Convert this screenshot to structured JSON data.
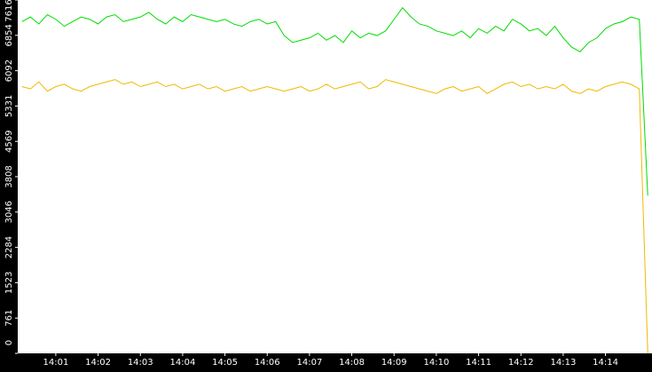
{
  "chart_data": {
    "type": "line",
    "categories": [
      null,
      null,
      null,
      null,
      "14:01",
      null,
      null,
      null,
      null,
      "14:02",
      null,
      null,
      null,
      null,
      "14:03",
      null,
      null,
      null,
      null,
      "14:04",
      null,
      null,
      null,
      null,
      "14:05",
      null,
      null,
      null,
      null,
      "14:06",
      null,
      null,
      null,
      null,
      "14:07",
      null,
      null,
      null,
      null,
      "14:08",
      null,
      null,
      null,
      null,
      "14:09",
      null,
      null,
      null,
      null,
      "14:10",
      null,
      null,
      null,
      null,
      "14:11",
      null,
      null,
      null,
      null,
      "14:12",
      null,
      null,
      null,
      null,
      "14:13",
      null,
      null,
      null,
      null,
      "14:14",
      null,
      null,
      null,
      null,
      null
    ],
    "series": [
      {
        "color": "#00dd00",
        "values": [
          7150,
          7250,
          7100,
          7300,
          7200,
          7050,
          7150,
          7250,
          7200,
          7100,
          7250,
          7300,
          7150,
          7200,
          7250,
          7350,
          7200,
          7100,
          7250,
          7150,
          7300,
          7250,
          7200,
          7150,
          7200,
          7100,
          7050,
          7150,
          7200,
          7100,
          7150,
          6850,
          6700,
          6750,
          6800,
          6900,
          6750,
          6850,
          6700,
          6950,
          6800,
          6900,
          6850,
          6950,
          7200,
          7450,
          7250,
          7100,
          7050,
          6950,
          6900,
          6850,
          6950,
          6800,
          7000,
          6900,
          7050,
          6950,
          7200,
          7100,
          6950,
          7000,
          6850,
          7050,
          6800,
          6600,
          6500,
          6700,
          6800,
          7000,
          7100,
          7150,
          7250,
          7200,
          3400
        ]
      },
      {
        "color": "#f0b800",
        "values": [
          5750,
          5700,
          5850,
          5650,
          5750,
          5800,
          5700,
          5650,
          5750,
          5800,
          5850,
          5900,
          5800,
          5850,
          5750,
          5800,
          5850,
          5750,
          5800,
          5700,
          5750,
          5800,
          5700,
          5750,
          5650,
          5700,
          5750,
          5650,
          5700,
          5750,
          5700,
          5650,
          5700,
          5750,
          5650,
          5700,
          5800,
          5700,
          5750,
          5800,
          5850,
          5700,
          5750,
          5900,
          5850,
          5800,
          5750,
          5700,
          5650,
          5600,
          5700,
          5750,
          5650,
          5700,
          5750,
          5600,
          5700,
          5800,
          5850,
          5750,
          5800,
          5700,
          5750,
          5700,
          5800,
          5650,
          5600,
          5700,
          5650,
          5750,
          5800,
          5850,
          5800,
          5700,
          0
        ]
      }
    ],
    "ylim": [
      0,
      7616
    ],
    "yticks": [
      0,
      761,
      1523,
      2284,
      3046,
      3808,
      4569,
      5331,
      6092,
      6854,
      7616
    ]
  }
}
